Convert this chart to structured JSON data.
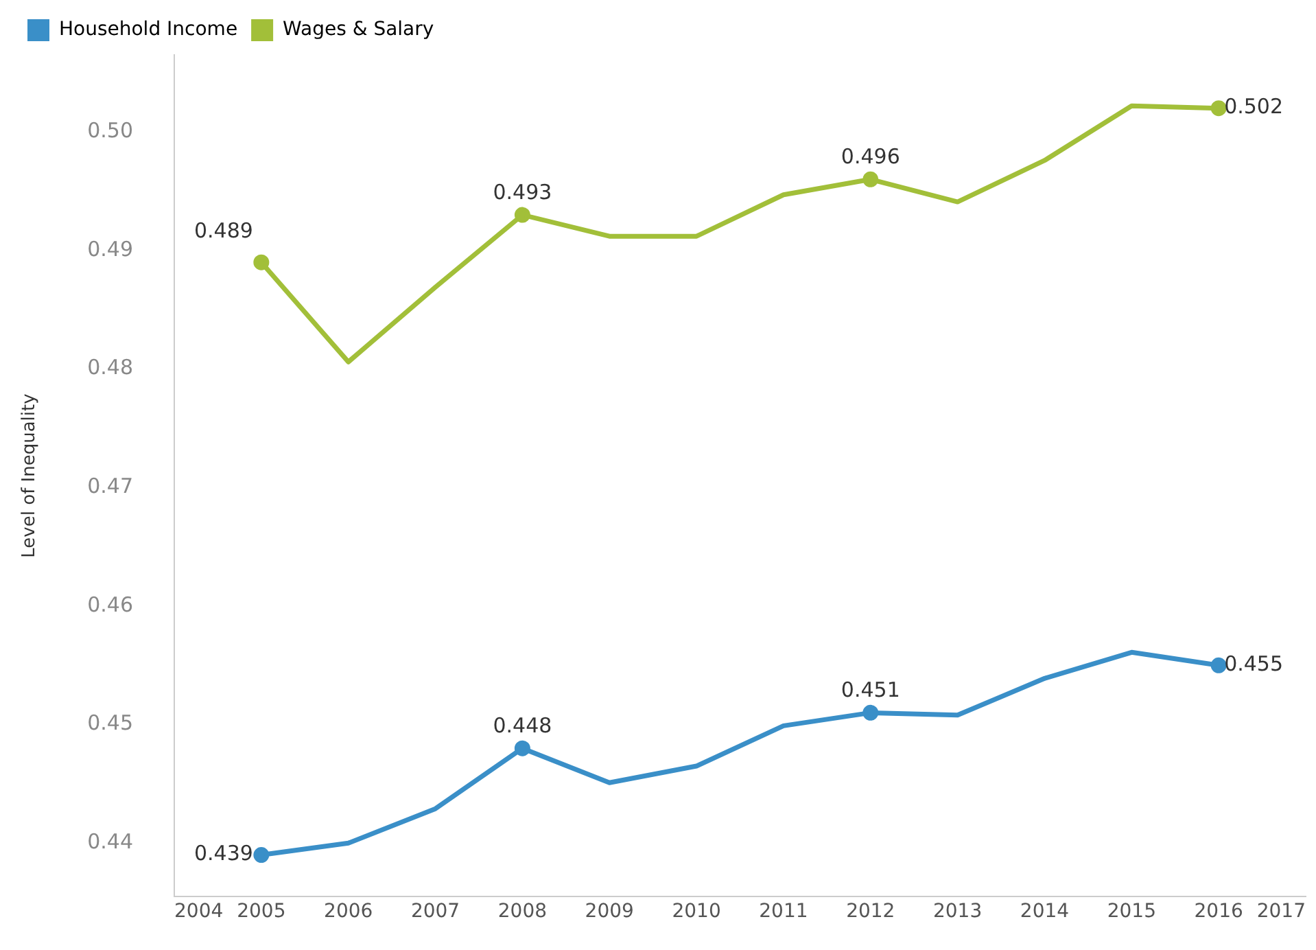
{
  "chart_data": {
    "type": "line",
    "ylabel": "Level of Inequality",
    "x": [
      2005,
      2006,
      2007,
      2008,
      2009,
      2010,
      2011,
      2012,
      2013,
      2014,
      2015,
      2016
    ],
    "xlim": [
      2004,
      2017
    ],
    "xticks": [
      2004,
      2005,
      2006,
      2007,
      2008,
      2009,
      2010,
      2011,
      2012,
      2013,
      2014,
      2015,
      2016,
      2017
    ],
    "ylim": [
      0.4355,
      0.5065
    ],
    "yticks": [
      0.44,
      0.45,
      0.46,
      0.47,
      0.48,
      0.49,
      {
        "value": 0.5,
        "label": "0.50"
      }
    ],
    "grid": false,
    "legend": "top left",
    "series": [
      {
        "name": "Household Income",
        "color": "#3a8fc8",
        "values": [
          0.439,
          0.44,
          0.4429,
          0.448,
          0.4451,
          0.4465,
          0.4499,
          0.451,
          0.4508,
          0.4539,
          0.4561,
          0.455
        ],
        "value_labels": [
          "0.439",
          null,
          null,
          "0.448",
          null,
          null,
          null,
          "0.451",
          null,
          null,
          null,
          "0.455"
        ]
      },
      {
        "name": "Wages & Salary",
        "color": "#a2bf39",
        "values": [
          0.489,
          0.4806,
          0.4869,
          0.493,
          0.4912,
          0.4912,
          0.4947,
          0.496,
          0.4941,
          0.4976,
          0.5022,
          0.502
        ],
        "value_labels": [
          "0.489",
          null,
          null,
          "0.493",
          null,
          null,
          null,
          "0.496",
          null,
          null,
          null,
          "0.502"
        ]
      }
    ]
  }
}
